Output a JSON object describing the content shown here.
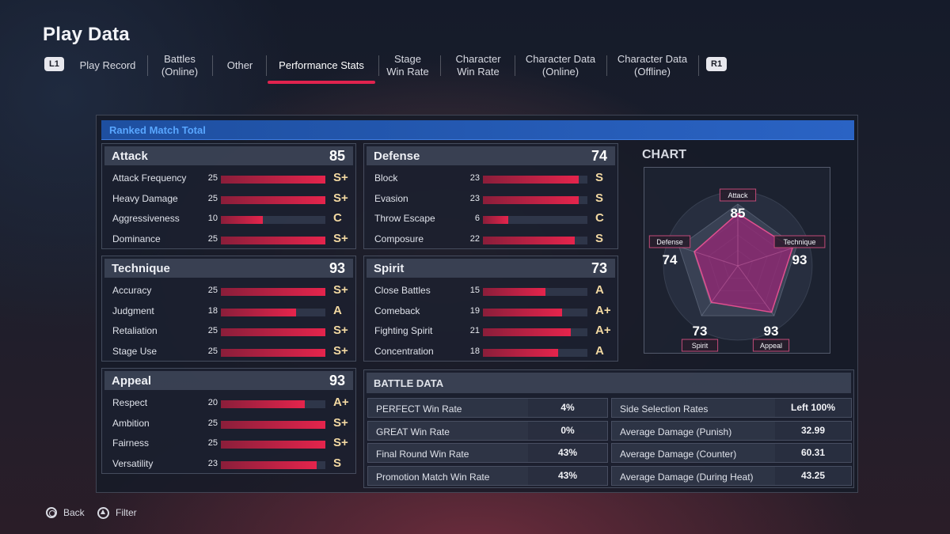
{
  "title": "Play Data",
  "nav": {
    "left_button": "L1",
    "right_button": "R1",
    "tabs": [
      {
        "label": "Play Record"
      },
      {
        "label": "Battles\n(Online)"
      },
      {
        "label": "Other"
      },
      {
        "label": "Performance Stats"
      },
      {
        "label": "Stage\nWin Rate"
      },
      {
        "label": "Character\nWin Rate"
      },
      {
        "label": "Character Data\n(Online)"
      },
      {
        "label": "Character Data\n(Offline)"
      }
    ],
    "active_index": 3
  },
  "panel": {
    "header": "Ranked Match Total"
  },
  "stats": [
    {
      "name": "Attack",
      "total": "85",
      "rows": [
        {
          "label": "Attack Frequency",
          "value": 25,
          "grade": "S+"
        },
        {
          "label": "Heavy Damage",
          "value": 25,
          "grade": "S+"
        },
        {
          "label": "Aggressiveness",
          "value": 10,
          "grade": "C"
        },
        {
          "label": "Dominance",
          "value": 25,
          "grade": "S+"
        }
      ]
    },
    {
      "name": "Defense",
      "total": "74",
      "rows": [
        {
          "label": "Block",
          "value": 23,
          "grade": "S"
        },
        {
          "label": "Evasion",
          "value": 23,
          "grade": "S"
        },
        {
          "label": "Throw Escape",
          "value": 6,
          "grade": "C"
        },
        {
          "label": "Composure",
          "value": 22,
          "grade": "S"
        }
      ]
    },
    {
      "name": "Technique",
      "total": "93",
      "rows": [
        {
          "label": "Accuracy",
          "value": 25,
          "grade": "S+"
        },
        {
          "label": "Judgment",
          "value": 18,
          "grade": "A"
        },
        {
          "label": "Retaliation",
          "value": 25,
          "grade": "S+"
        },
        {
          "label": "Stage Use",
          "value": 25,
          "grade": "S+"
        }
      ]
    },
    {
      "name": "Spirit",
      "total": "73",
      "rows": [
        {
          "label": "Close Battles",
          "value": 15,
          "grade": "A"
        },
        {
          "label": "Comeback",
          "value": 19,
          "grade": "A+"
        },
        {
          "label": "Fighting Spirit",
          "value": 21,
          "grade": "A+"
        },
        {
          "label": "Concentration",
          "value": 18,
          "grade": "A"
        }
      ]
    },
    {
      "name": "Appeal",
      "total": "93",
      "rows": [
        {
          "label": "Respect",
          "value": 20,
          "grade": "A+"
        },
        {
          "label": "Ambition",
          "value": 25,
          "grade": "S+"
        },
        {
          "label": "Fairness",
          "value": 25,
          "grade": "S+"
        },
        {
          "label": "Versatility",
          "value": 23,
          "grade": "S"
        }
      ]
    }
  ],
  "stat_max": 25,
  "chart_data": {
    "type": "radar",
    "title": "CHART",
    "max": 100,
    "axes": [
      "Attack",
      "Technique",
      "Appeal",
      "Spirit",
      "Defense"
    ],
    "values": [
      85,
      93,
      93,
      73,
      74
    ],
    "value_labels": [
      "85",
      "93",
      "93",
      "73",
      "74"
    ],
    "fill_color": "#8c2a72",
    "stroke_color": "#e0508f"
  },
  "battle_data": {
    "title": "BATTLE DATA",
    "left": [
      {
        "label": "PERFECT Win Rate",
        "value": "4%"
      },
      {
        "label": "GREAT Win Rate",
        "value": "0%"
      },
      {
        "label": "Final Round Win Rate",
        "value": "43%"
      },
      {
        "label": "Promotion Match Win Rate",
        "value": "43%"
      }
    ],
    "right": [
      {
        "label": "Side Selection Rates",
        "value": "Left  100%"
      },
      {
        "label": "Average Damage (Punish)",
        "value": "32.99"
      },
      {
        "label": "Average Damage (Counter)",
        "value": "60.31"
      },
      {
        "label": "Average Damage (During Heat)",
        "value": "43.25"
      }
    ]
  },
  "footer": {
    "back_label": "Back",
    "filter_label": "Filter",
    "back_icon": "circle-button-icon",
    "filter_icon": "triangle-button-icon"
  }
}
